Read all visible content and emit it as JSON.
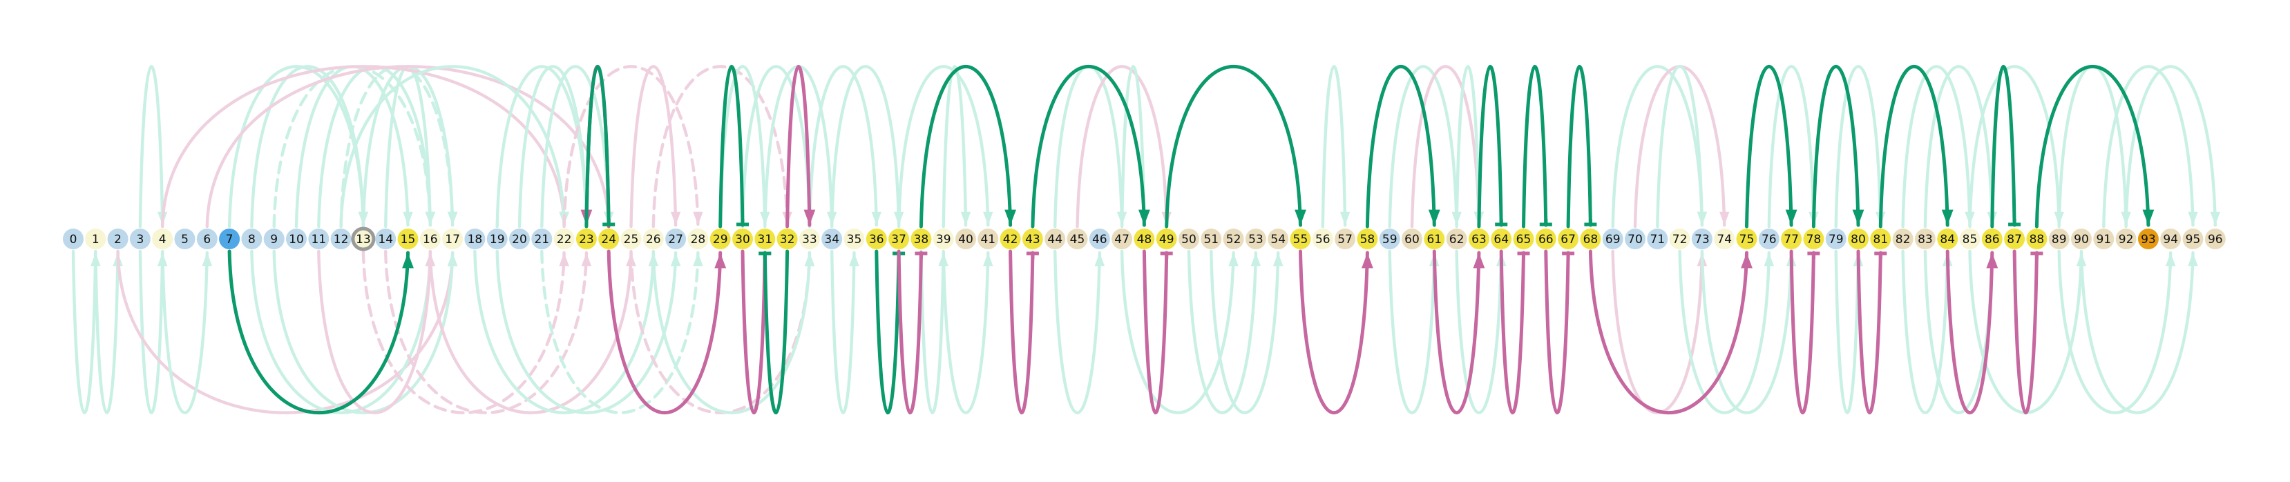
{
  "colors": {
    "background": "#ffffff",
    "arc_light_green": "#c9f0e4",
    "arc_dark_green": "#0a9a6c",
    "arc_light_pink": "#efd0df",
    "arc_dark_pink": "#c6679f",
    "node_light_blue": "#bcd8ea",
    "node_cream": "#f7f5d2",
    "node_tan": "#e9dcbd",
    "node_yellow": "#f0e33f",
    "node_blue": "#4fa7e6",
    "node_orange": "#e59a12",
    "node_ring": "#9a9a9a"
  },
  "nodes": [
    {
      "label": "0",
      "fill": "#bcd8ea"
    },
    {
      "label": "1",
      "fill": "#f7f5d2"
    },
    {
      "label": "2",
      "fill": "#bcd8ea"
    },
    {
      "label": "3",
      "fill": "#bcd8ea"
    },
    {
      "label": "4",
      "fill": "#f7f5d2"
    },
    {
      "label": "5",
      "fill": "#bcd8ea"
    },
    {
      "label": "6",
      "fill": "#bcd8ea"
    },
    {
      "label": "7",
      "fill": "#4fa7e6"
    },
    {
      "label": "8",
      "fill": "#bcd8ea"
    },
    {
      "label": "9",
      "fill": "#bcd8ea"
    },
    {
      "label": "10",
      "fill": "#bcd8ea"
    },
    {
      "label": "11",
      "fill": "#bcd8ea"
    },
    {
      "label": "12",
      "fill": "#bcd8ea"
    },
    {
      "label": "13",
      "fill": "#f7f5d2",
      "ring": true
    },
    {
      "label": "14",
      "fill": "#bcd8ea"
    },
    {
      "label": "15",
      "fill": "#f0e33f"
    },
    {
      "label": "16",
      "fill": "#f7f5d2"
    },
    {
      "label": "17",
      "fill": "#f7f5d2"
    },
    {
      "label": "18",
      "fill": "#bcd8ea"
    },
    {
      "label": "19",
      "fill": "#bcd8ea"
    },
    {
      "label": "20",
      "fill": "#bcd8ea"
    },
    {
      "label": "21",
      "fill": "#bcd8ea"
    },
    {
      "label": "22",
      "fill": "#f7f5d2"
    },
    {
      "label": "23",
      "fill": "#f0e33f"
    },
    {
      "label": "24",
      "fill": "#f0e33f"
    },
    {
      "label": "25",
      "fill": "#f7f5d2"
    },
    {
      "label": "26",
      "fill": "#f7f5d2"
    },
    {
      "label": "27",
      "fill": "#bcd8ea"
    },
    {
      "label": "28",
      "fill": "#f7f5d2"
    },
    {
      "label": "29",
      "fill": "#f0e33f"
    },
    {
      "label": "30",
      "fill": "#f0e33f"
    },
    {
      "label": "31",
      "fill": "#f0e33f"
    },
    {
      "label": "32",
      "fill": "#f0e33f"
    },
    {
      "label": "33",
      "fill": "#f7f5d2"
    },
    {
      "label": "34",
      "fill": "#bcd8ea"
    },
    {
      "label": "35",
      "fill": "#f7f5d2"
    },
    {
      "label": "36",
      "fill": "#f0e33f"
    },
    {
      "label": "37",
      "fill": "#f0e33f"
    },
    {
      "label": "38",
      "fill": "#f0e33f"
    },
    {
      "label": "39",
      "fill": "#f7f5d2"
    },
    {
      "label": "40",
      "fill": "#e9dcbd"
    },
    {
      "label": "41",
      "fill": "#e9dcbd"
    },
    {
      "label": "42",
      "fill": "#f0e33f"
    },
    {
      "label": "43",
      "fill": "#f0e33f"
    },
    {
      "label": "44",
      "fill": "#e9dcbd"
    },
    {
      "label": "45",
      "fill": "#e9dcbd"
    },
    {
      "label": "46",
      "fill": "#bcd8ea"
    },
    {
      "label": "47",
      "fill": "#e9dcbd"
    },
    {
      "label": "48",
      "fill": "#f0e33f"
    },
    {
      "label": "49",
      "fill": "#f0e33f"
    },
    {
      "label": "50",
      "fill": "#e9dcbd"
    },
    {
      "label": "51",
      "fill": "#e9dcbd"
    },
    {
      "label": "52",
      "fill": "#e9dcbd"
    },
    {
      "label": "53",
      "fill": "#e9dcbd"
    },
    {
      "label": "54",
      "fill": "#e9dcbd"
    },
    {
      "label": "55",
      "fill": "#f0e33f"
    },
    {
      "label": "56",
      "fill": "#f7f5d2"
    },
    {
      "label": "57",
      "fill": "#e9dcbd"
    },
    {
      "label": "58",
      "fill": "#f0e33f"
    },
    {
      "label": "59",
      "fill": "#bcd8ea"
    },
    {
      "label": "60",
      "fill": "#e9dcbd"
    },
    {
      "label": "61",
      "fill": "#f0e33f"
    },
    {
      "label": "62",
      "fill": "#e9dcbd"
    },
    {
      "label": "63",
      "fill": "#f0e33f"
    },
    {
      "label": "64",
      "fill": "#f0e33f"
    },
    {
      "label": "65",
      "fill": "#f0e33f"
    },
    {
      "label": "66",
      "fill": "#f0e33f"
    },
    {
      "label": "67",
      "fill": "#f0e33f"
    },
    {
      "label": "68",
      "fill": "#f0e33f"
    },
    {
      "label": "69",
      "fill": "#bcd8ea"
    },
    {
      "label": "70",
      "fill": "#bcd8ea"
    },
    {
      "label": "71",
      "fill": "#bcd8ea"
    },
    {
      "label": "72",
      "fill": "#f7f5d2"
    },
    {
      "label": "73",
      "fill": "#bcd8ea"
    },
    {
      "label": "74",
      "fill": "#f7f5d2"
    },
    {
      "label": "75",
      "fill": "#f0e33f"
    },
    {
      "label": "76",
      "fill": "#bcd8ea"
    },
    {
      "label": "77",
      "fill": "#f0e33f"
    },
    {
      "label": "78",
      "fill": "#f0e33f"
    },
    {
      "label": "79",
      "fill": "#bcd8ea"
    },
    {
      "label": "80",
      "fill": "#f0e33f"
    },
    {
      "label": "81",
      "fill": "#f0e33f"
    },
    {
      "label": "82",
      "fill": "#e9dcbd"
    },
    {
      "label": "83",
      "fill": "#e9dcbd"
    },
    {
      "label": "84",
      "fill": "#f0e33f"
    },
    {
      "label": "85",
      "fill": "#f7f5d2"
    },
    {
      "label": "86",
      "fill": "#f0e33f"
    },
    {
      "label": "87",
      "fill": "#f0e33f"
    },
    {
      "label": "88",
      "fill": "#f0e33f"
    },
    {
      "label": "89",
      "fill": "#e9dcbd"
    },
    {
      "label": "90",
      "fill": "#e9dcbd"
    },
    {
      "label": "91",
      "fill": "#e9dcbd"
    },
    {
      "label": "92",
      "fill": "#e9dcbd"
    },
    {
      "label": "93",
      "fill": "#e59a12"
    },
    {
      "label": "94",
      "fill": "#e9dcbd"
    },
    {
      "label": "95",
      "fill": "#e9dcbd"
    },
    {
      "label": "96",
      "fill": "#e9dcbd"
    }
  ],
  "arcs_strong_above": [
    {
      "from": 24,
      "to": 23,
      "style": "pink",
      "marker": "arrow"
    },
    {
      "from": 23,
      "to": 24,
      "style": "green",
      "marker": "bar"
    },
    {
      "from": 29,
      "to": 30,
      "style": "green",
      "marker": "bar"
    },
    {
      "from": 32,
      "to": 33,
      "style": "pink",
      "marker": "arrow"
    },
    {
      "from": 38,
      "to": 42,
      "style": "green",
      "marker": "arrow"
    },
    {
      "from": 43,
      "to": 48,
      "style": "green",
      "marker": "arrow"
    },
    {
      "from": 49,
      "to": 55,
      "style": "green",
      "marker": "arrow"
    },
    {
      "from": 58,
      "to": 61,
      "style": "green",
      "marker": "arrow"
    },
    {
      "from": 63,
      "to": 64,
      "style": "green",
      "marker": "bar"
    },
    {
      "from": 65,
      "to": 66,
      "style": "green",
      "marker": "bar"
    },
    {
      "from": 67,
      "to": 68,
      "style": "green",
      "marker": "bar"
    },
    {
      "from": 75,
      "to": 77,
      "style": "green",
      "marker": "arrow"
    },
    {
      "from": 78,
      "to": 80,
      "style": "green",
      "marker": "arrow"
    },
    {
      "from": 81,
      "to": 84,
      "style": "green",
      "marker": "arrow"
    },
    {
      "from": 86,
      "to": 87,
      "style": "green",
      "marker": "bar"
    },
    {
      "from": 88,
      "to": 93,
      "style": "green",
      "marker": "arrow"
    }
  ],
  "arcs_strong_below": [
    {
      "from": 7,
      "to": 15,
      "style": "green",
      "marker": "arrow"
    },
    {
      "from": 24,
      "to": 29,
      "style": "pink",
      "marker": "arrow"
    },
    {
      "from": 30,
      "to": 31,
      "style": "pink",
      "marker": "bar"
    },
    {
      "from": 32,
      "to": 31,
      "style": "green",
      "marker": "bar"
    },
    {
      "from": 36,
      "to": 37,
      "style": "green",
      "marker": "bar"
    },
    {
      "from": 37,
      "to": 38,
      "style": "pink",
      "marker": "bar"
    },
    {
      "from": 42,
      "to": 43,
      "style": "pink",
      "marker": "bar"
    },
    {
      "from": 48,
      "to": 49,
      "style": "pink",
      "marker": "bar"
    },
    {
      "from": 55,
      "to": 58,
      "style": "pink",
      "marker": "arrow"
    },
    {
      "from": 61,
      "to": 63,
      "style": "pink",
      "marker": "arrow"
    },
    {
      "from": 64,
      "to": 65,
      "style": "pink",
      "marker": "bar"
    },
    {
      "from": 66,
      "to": 67,
      "style": "pink",
      "marker": "bar"
    },
    {
      "from": 68,
      "to": 75,
      "style": "pink",
      "marker": "arrow"
    },
    {
      "from": 77,
      "to": 78,
      "style": "pink",
      "marker": "bar"
    },
    {
      "from": 80,
      "to": 81,
      "style": "pink",
      "marker": "bar"
    },
    {
      "from": 84,
      "to": 86,
      "style": "pink",
      "marker": "arrow"
    },
    {
      "from": 87,
      "to": 88,
      "style": "pink",
      "marker": "bar"
    }
  ],
  "arcs_faint_above": [
    {
      "from": 3,
      "to": 4,
      "style": "green"
    },
    {
      "from": 7,
      "to": 13,
      "style": "green"
    },
    {
      "from": 8,
      "to": 13,
      "style": "green"
    },
    {
      "from": 9,
      "to": 16,
      "style": "green",
      "dashed": true
    },
    {
      "from": 10,
      "to": 15,
      "style": "green"
    },
    {
      "from": 11,
      "to": 16,
      "style": "green"
    },
    {
      "from": 12,
      "to": 17,
      "style": "green",
      "dashed": true
    },
    {
      "from": 13,
      "to": 17,
      "style": "green"
    },
    {
      "from": 14,
      "to": 16,
      "style": "green"
    },
    {
      "from": 4,
      "to": 22,
      "style": "pink"
    },
    {
      "from": 6,
      "to": 24,
      "style": "pink"
    },
    {
      "from": 12,
      "to": 22,
      "style": "green"
    },
    {
      "from": 19,
      "to": 23,
      "style": "green"
    },
    {
      "from": 20,
      "to": 23,
      "style": "green"
    },
    {
      "from": 21,
      "to": 24,
      "style": "green"
    },
    {
      "from": 22,
      "to": 28,
      "style": "pink",
      "dashed": true
    },
    {
      "from": 25,
      "to": 27,
      "style": "pink"
    },
    {
      "from": 26,
      "to": 32,
      "style": "pink",
      "dashed": true
    },
    {
      "from": 29,
      "to": 31,
      "style": "green"
    },
    {
      "from": 30,
      "to": 33,
      "style": "green"
    },
    {
      "from": 31,
      "to": 34,
      "style": "green"
    },
    {
      "from": 33,
      "to": 36,
      "style": "green"
    },
    {
      "from": 34,
      "to": 37,
      "style": "green"
    },
    {
      "from": 37,
      "to": 41,
      "style": "green"
    },
    {
      "from": 39,
      "to": 40,
      "style": "green"
    },
    {
      "from": 44,
      "to": 47,
      "style": "green"
    },
    {
      "from": 45,
      "to": 49,
      "style": "pink"
    },
    {
      "from": 47,
      "to": 48,
      "style": "green"
    },
    {
      "from": 56,
      "to": 57,
      "style": "green"
    },
    {
      "from": 59,
      "to": 62,
      "style": "green"
    },
    {
      "from": 60,
      "to": 63,
      "style": "pink"
    },
    {
      "from": 62,
      "to": 63,
      "style": "green"
    },
    {
      "from": 69,
      "to": 73,
      "style": "green"
    },
    {
      "from": 70,
      "to": 74,
      "style": "pink"
    },
    {
      "from": 71,
      "to": 73,
      "style": "green"
    },
    {
      "from": 76,
      "to": 78,
      "style": "green"
    },
    {
      "from": 79,
      "to": 81,
      "style": "green"
    },
    {
      "from": 82,
      "to": 85,
      "style": "green"
    },
    {
      "from": 83,
      "to": 86,
      "style": "green"
    },
    {
      "from": 85,
      "to": 89,
      "style": "green"
    },
    {
      "from": 89,
      "to": 92,
      "style": "green"
    },
    {
      "from": 91,
      "to": 95,
      "style": "green"
    },
    {
      "from": 92,
      "to": 96,
      "style": "green"
    }
  ],
  "arcs_faint_below": [
    {
      "from": 0,
      "to": 1,
      "style": "green"
    },
    {
      "from": 1,
      "to": 2,
      "style": "green"
    },
    {
      "from": 3,
      "to": 4,
      "style": "green"
    },
    {
      "from": 2,
      "to": 17,
      "style": "pink"
    },
    {
      "from": 4,
      "to": 6,
      "style": "green"
    },
    {
      "from": 8,
      "to": 16,
      "style": "green"
    },
    {
      "from": 9,
      "to": 17,
      "style": "green"
    },
    {
      "from": 11,
      "to": 16,
      "style": "pink"
    },
    {
      "from": 13,
      "to": 22,
      "style": "pink",
      "dashed": true
    },
    {
      "from": 14,
      "to": 23,
      "style": "pink",
      "dashed": true
    },
    {
      "from": 16,
      "to": 25,
      "style": "pink"
    },
    {
      "from": 18,
      "to": 26,
      "style": "green"
    },
    {
      "from": 19,
      "to": 27,
      "style": "green"
    },
    {
      "from": 21,
      "to": 28,
      "style": "green",
      "dashed": true
    },
    {
      "from": 25,
      "to": 33,
      "style": "pink",
      "dashed": true
    },
    {
      "from": 26,
      "to": 33,
      "style": "green"
    },
    {
      "from": 34,
      "to": 35,
      "style": "green"
    },
    {
      "from": 38,
      "to": 39,
      "style": "green"
    },
    {
      "from": 39,
      "to": 41,
      "style": "green"
    },
    {
      "from": 44,
      "to": 46,
      "style": "green"
    },
    {
      "from": 47,
      "to": 52,
      "style": "green"
    },
    {
      "from": 50,
      "to": 53,
      "style": "green"
    },
    {
      "from": 51,
      "to": 54,
      "style": "green"
    },
    {
      "from": 59,
      "to": 61,
      "style": "green"
    },
    {
      "from": 62,
      "to": 64,
      "style": "green"
    },
    {
      "from": 69,
      "to": 73,
      "style": "pink"
    },
    {
      "from": 72,
      "to": 76,
      "style": "green"
    },
    {
      "from": 73,
      "to": 77,
      "style": "green"
    },
    {
      "from": 79,
      "to": 80,
      "style": "green"
    },
    {
      "from": 82,
      "to": 84,
      "style": "green"
    },
    {
      "from": 83,
      "to": 86,
      "style": "green"
    },
    {
      "from": 85,
      "to": 90,
      "style": "green"
    },
    {
      "from": 89,
      "to": 94,
      "style": "green"
    },
    {
      "from": 90,
      "to": 95,
      "style": "green"
    }
  ]
}
